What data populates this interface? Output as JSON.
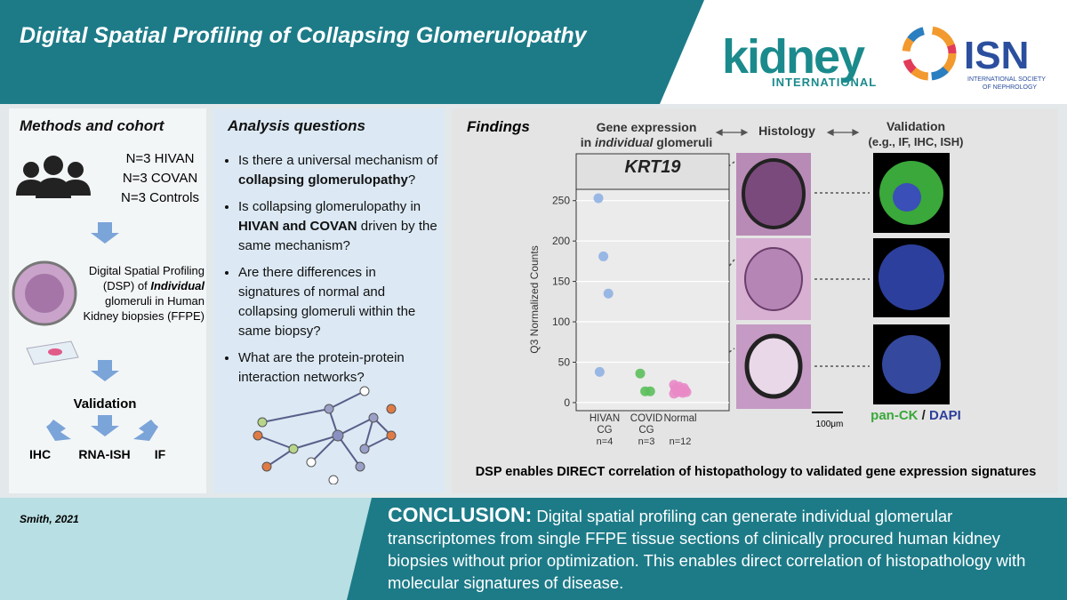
{
  "header": {
    "title": "Digital Spatial Profiling of Collapsing Glomerulopathy",
    "kidney_logo": "kidney",
    "kidney_logo_sub": "INTERNATIONAL",
    "isn_logo": "ISN",
    "isn_logo_sub": [
      "INTERNATIONAL SOCIETY",
      "OF NEPHROLOGY"
    ]
  },
  "methods": {
    "title": "Methods and cohort",
    "cohort": [
      "N=3 HIVAN",
      "N=3 COVAN",
      "N=3 Controls"
    ],
    "dsp": [
      "Digital Spatial Profiling (DSP) of ",
      "Individual",
      " glomeruli in Human Kidney biopsies (FFPE)"
    ],
    "validation": "Validation",
    "techniques": [
      "IHC",
      "RNA-ISH",
      "IF"
    ]
  },
  "analysis": {
    "title": "Analysis questions",
    "questions": [
      [
        "Is there a universal mechanism of ",
        "collapsing glomerulopathy",
        "?"
      ],
      [
        "Is collapsing glomerulopathy in ",
        "HIVAN and COVAN",
        " driven by the same mechanism?"
      ],
      [
        "Are there differences in signatures of normal and collapsing glomeruli within the same biopsy?"
      ],
      [
        "What are the protein-protein interaction networks?"
      ]
    ]
  },
  "findings": {
    "title": "Findings",
    "gene_header": [
      "Gene expression",
      "in ",
      "individual",
      " glomeruli"
    ],
    "histology_header": "Histology",
    "validation_header": [
      "Validation",
      "(e.g., IF, IHC, ISH)"
    ],
    "scale": "100μm",
    "stain": [
      "pan-CK",
      " / ",
      "DAPI"
    ],
    "statement": "DSP enables DIRECT correlation of histopathology to validated gene expression signatures"
  },
  "chart_data": {
    "type": "scatter",
    "title": "KRT19",
    "y_label": "Q3 Normalized Counts",
    "categories": [
      "HIVAN CG",
      "COVID CG",
      "Normal"
    ],
    "n": [
      "n=4",
      "n=3",
      "n=12"
    ],
    "colors": [
      "#8fb1e3",
      "#5cbf5c",
      "#e98ac6"
    ],
    "values": [
      [
        253,
        181,
        135,
        38
      ],
      [
        36,
        14,
        14
      ],
      [
        22,
        20,
        18,
        17,
        16,
        15,
        15,
        14,
        13,
        13,
        12,
        11
      ]
    ],
    "ylim": [
      -10,
      264
    ],
    "yticks": [
      0,
      50,
      100,
      150,
      200,
      250
    ],
    "grid": true
  },
  "footer": {
    "citation": "Smith, 2021",
    "conclusion_label": "CONCLUSION:",
    "conclusion": " Digital spatial profiling can generate individual glomerular transcriptomes from single FFPE tissue sections of clinically procured human kidney biopsies without prior optimization. This enables direct correlation of histopathology with molecular signatures of disease."
  }
}
